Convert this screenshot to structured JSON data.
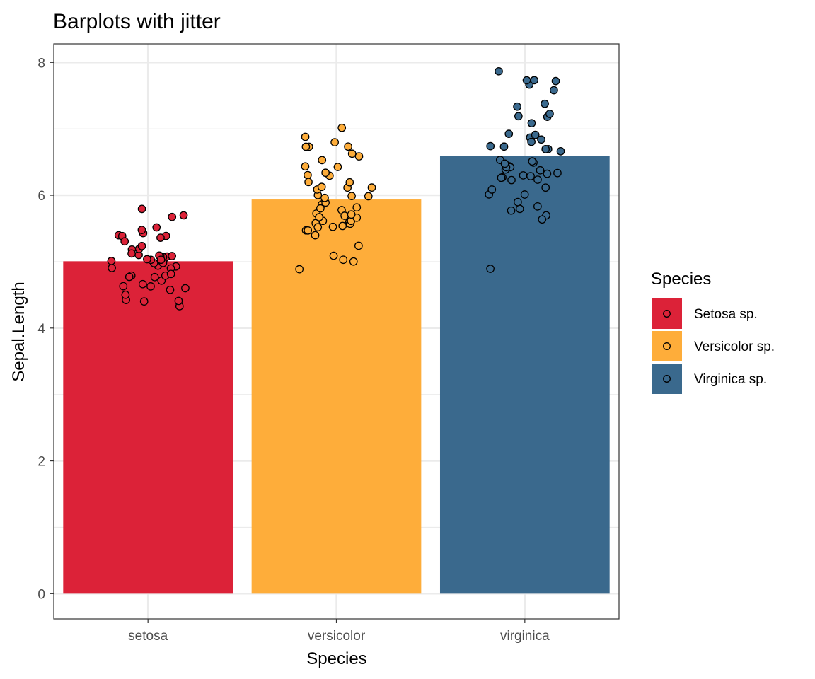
{
  "chart_data": {
    "type": "bar",
    "title": "Barplots with jitter",
    "xlabel": "Species",
    "ylabel": "Sepal.Length",
    "categories": [
      "setosa",
      "versicolor",
      "virginica"
    ],
    "values": [
      5.006,
      5.936,
      6.588
    ],
    "ylim": [
      -0.38,
      8.28
    ],
    "yticks": [
      0,
      2,
      4,
      6,
      8
    ],
    "grid": true,
    "colors": [
      "#DC2238",
      "#FEAD3A",
      "#3A698D"
    ],
    "legend": {
      "title": "Species",
      "placement": "right",
      "entries": [
        "Setosa sp.",
        "Versicolor sp.",
        "Virginica sp."
      ]
    },
    "points": [
      [
        5.1,
        4.9,
        4.7,
        4.6,
        5.0,
        5.4,
        4.6,
        5.0,
        4.4,
        4.9,
        5.4,
        4.8,
        4.8,
        4.3,
        5.8,
        5.7,
        5.4,
        5.1,
        5.7,
        5.1,
        5.4,
        5.1,
        4.6,
        5.1,
        4.8,
        5.0,
        5.0,
        5.2,
        5.2,
        4.7,
        4.8,
        5.4,
        5.2,
        5.5,
        4.9,
        5.0,
        5.5,
        4.9,
        4.4,
        5.1,
        5.0,
        4.5,
        4.4,
        5.0,
        5.1,
        4.8,
        5.1,
        4.6,
        5.3,
        5.0
      ],
      [
        7.0,
        6.4,
        6.9,
        5.5,
        6.5,
        5.7,
        6.3,
        4.9,
        6.6,
        5.2,
        5.0,
        5.9,
        6.0,
        6.1,
        5.6,
        6.7,
        5.6,
        5.8,
        6.2,
        5.6,
        5.9,
        6.1,
        6.3,
        6.1,
        6.4,
        6.6,
        6.8,
        6.7,
        6.0,
        5.7,
        5.5,
        5.5,
        5.8,
        6.0,
        5.4,
        6.0,
        6.7,
        6.3,
        5.6,
        5.5,
        5.5,
        6.1,
        5.8,
        5.0,
        5.6,
        5.7,
        5.7,
        6.2,
        5.1,
        5.7
      ],
      [
        6.3,
        5.8,
        7.1,
        6.3,
        6.5,
        7.6,
        4.9,
        7.3,
        6.7,
        7.2,
        6.5,
        6.4,
        6.8,
        5.7,
        5.8,
        6.4,
        6.5,
        7.7,
        7.7,
        6.0,
        6.9,
        5.6,
        7.7,
        6.3,
        6.7,
        7.2,
        6.2,
        6.1,
        6.4,
        7.2,
        7.4,
        7.9,
        6.4,
        6.3,
        6.1,
        7.7,
        6.3,
        6.4,
        6.0,
        6.9,
        6.7,
        6.9,
        5.8,
        6.8,
        6.7,
        6.7,
        6.3,
        6.5,
        6.2,
        5.9
      ]
    ]
  }
}
